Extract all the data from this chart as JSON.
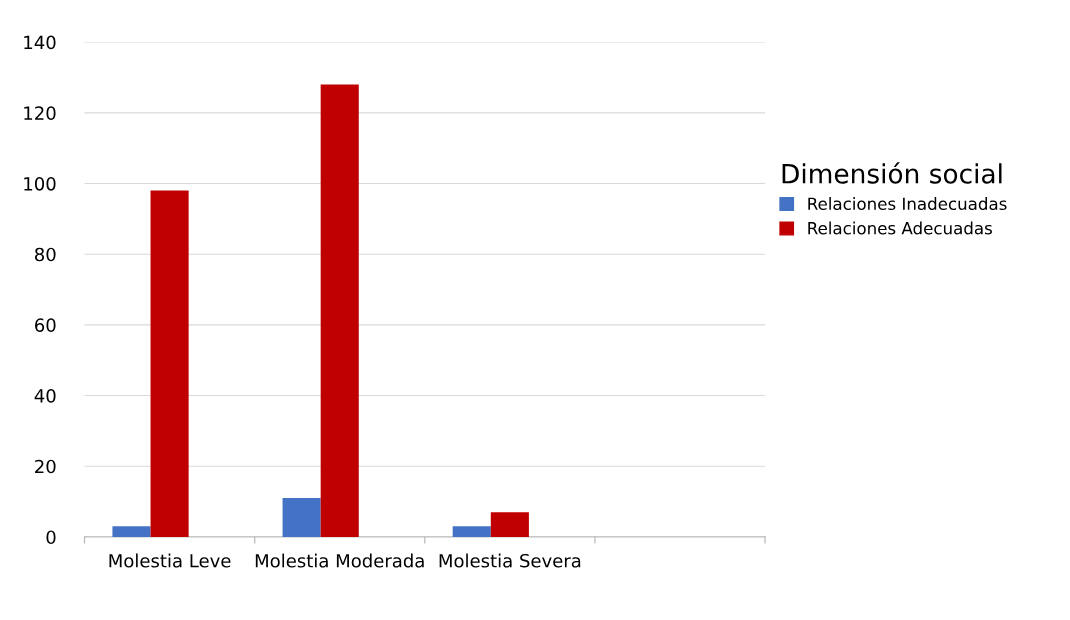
{
  "chart_data": {
    "type": "bar",
    "categories": [
      "Molestia Leve",
      "Molestia Moderada",
      "Molestia Severa",
      null
    ],
    "series": [
      {
        "name": "Relaciones Inadecuadas",
        "color": "#4472c4",
        "values": [
          3,
          11,
          3,
          null
        ]
      },
      {
        "name": "Relaciones Adecuadas",
        "color": "#c00000",
        "values": [
          98,
          128,
          7,
          null
        ]
      }
    ],
    "legend_title": "Dimensión social",
    "legend": "right",
    "ylim": [
      0,
      140
    ],
    "yticks": [
      0,
      20,
      40,
      60,
      80,
      100,
      120,
      140
    ],
    "grid": "y"
  }
}
